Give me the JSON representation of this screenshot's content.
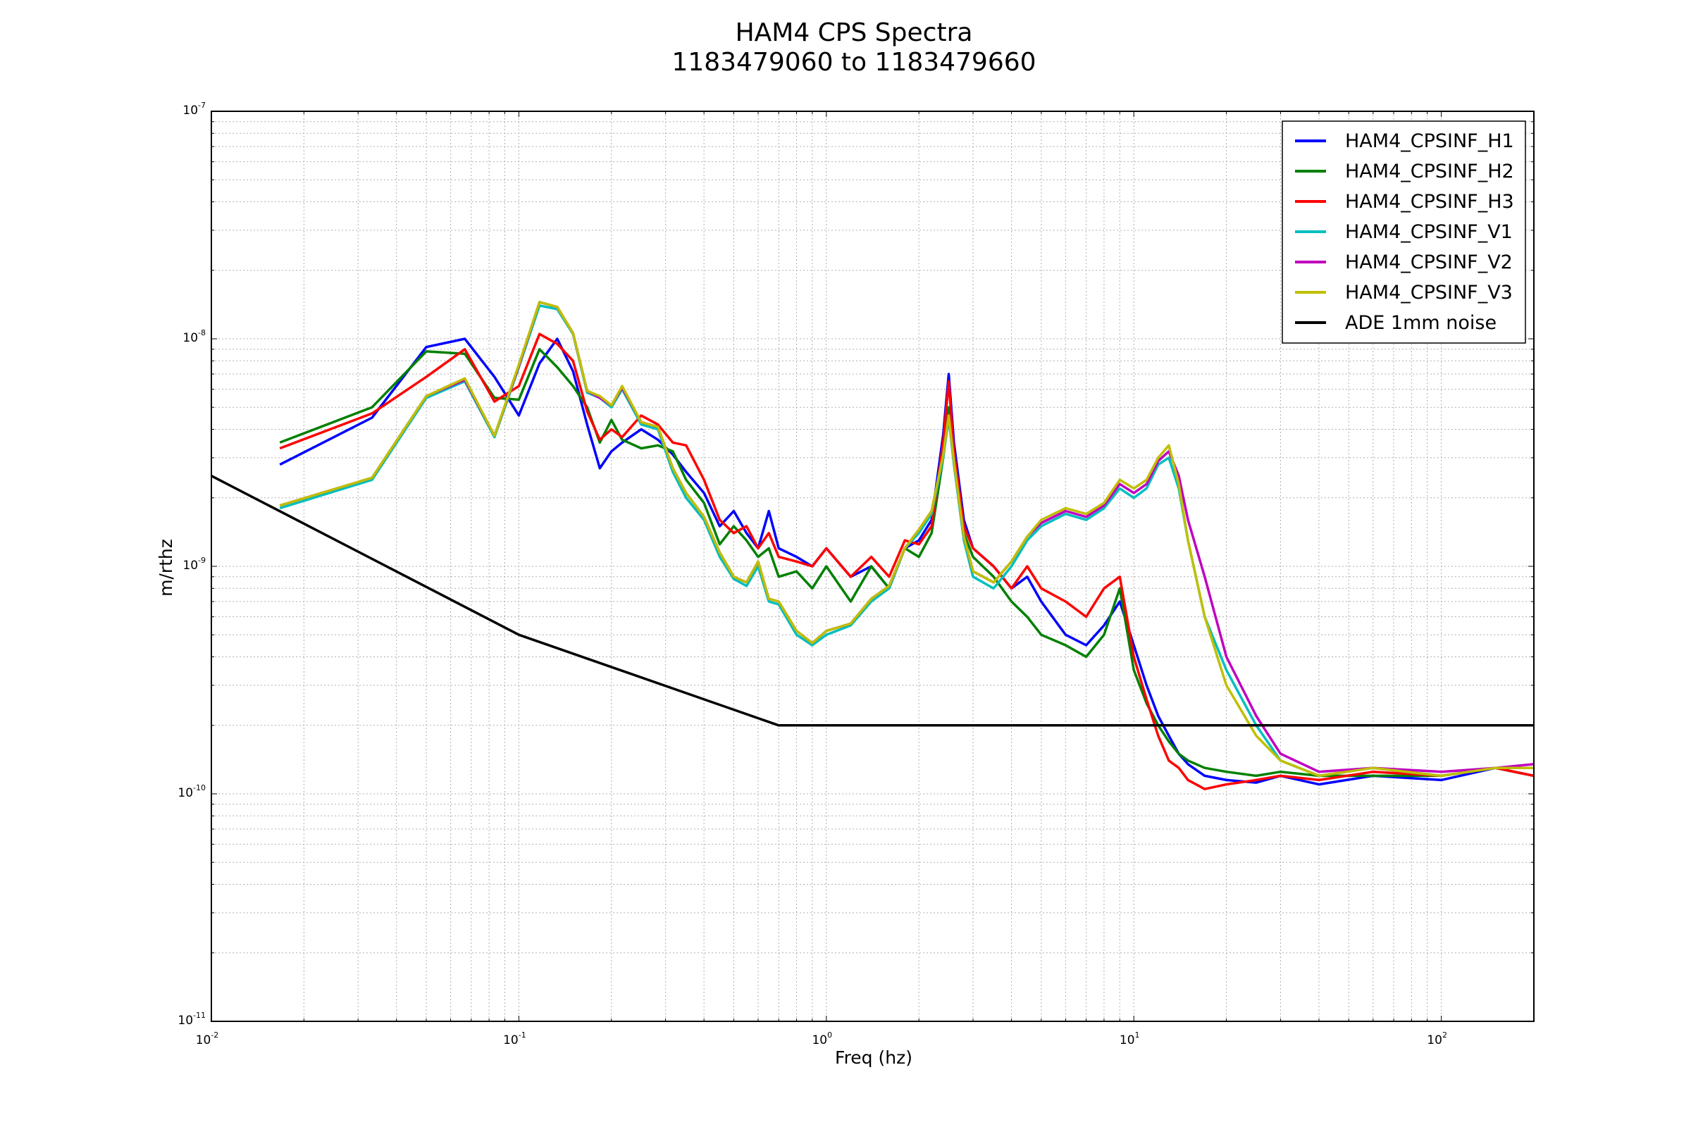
{
  "window_title": "HAM4 CPS Spectra",
  "chart_data": {
    "type": "line",
    "title": "HAM4 CPS Spectra",
    "subtitle": "1183479060 to 1183479660",
    "xlabel": "Freq (hz)",
    "ylabel": "m/rthz",
    "x_scale": "log",
    "y_scale": "log",
    "xlim": [
      0.01,
      200
    ],
    "ylim": [
      1e-11,
      1e-07
    ],
    "grid": true,
    "legend_position": "top-right",
    "x_ticks": [
      {
        "base": "10",
        "exp": "-2"
      },
      {
        "base": "10",
        "exp": "-1"
      },
      {
        "base": "10",
        "exp": "0"
      },
      {
        "base": "10",
        "exp": "1"
      },
      {
        "base": "10",
        "exp": "2"
      }
    ],
    "y_ticks": [
      {
        "base": "10",
        "exp": "-11"
      },
      {
        "base": "10",
        "exp": "-10"
      },
      {
        "base": "10",
        "exp": "-9"
      },
      {
        "base": "10",
        "exp": "-8"
      },
      {
        "base": "10",
        "exp": "-7"
      }
    ],
    "series": [
      {
        "name": "HAM4_CPSINF_H1",
        "color": "#0000ff",
        "x": [
          0.0167,
          0.0333,
          0.05,
          0.0667,
          0.0833,
          0.1,
          0.1167,
          0.1333,
          0.15,
          0.1667,
          0.1833,
          0.2,
          0.2167,
          0.25,
          0.2833,
          0.3167,
          0.35,
          0.4,
          0.45,
          0.5,
          0.55,
          0.6,
          0.65,
          0.7,
          0.8,
          0.9,
          1.0,
          1.2,
          1.4,
          1.6,
          1.8,
          2.0,
          2.2,
          2.4,
          2.5,
          2.6,
          2.8,
          3.0,
          3.5,
          4.0,
          4.5,
          5.0,
          6.0,
          7.0,
          8.0,
          9.0,
          10.0,
          11.0,
          12.0,
          13.0,
          14.0,
          15.0,
          17.0,
          20.0,
          25.0,
          30.0,
          40.0,
          60.0,
          100.0,
          150.0,
          200.0
        ],
        "y": [
          2.8e-09,
          4.5e-09,
          9.2e-09,
          1e-08,
          6.8e-09,
          4.6e-09,
          7.8e-09,
          1e-08,
          7.2e-09,
          4.2e-09,
          2.7e-09,
          3.2e-09,
          3.5e-09,
          4e-09,
          3.6e-09,
          3.1e-09,
          2.6e-09,
          2.1e-09,
          1.5e-09,
          1.75e-09,
          1.4e-09,
          1.2e-09,
          1.75e-09,
          1.2e-09,
          1.1e-09,
          1e-09,
          1.2e-09,
          9e-10,
          1e-09,
          8e-10,
          1.2e-09,
          1.3e-09,
          1.6e-09,
          3.8e-09,
          7e-09,
          3.5e-09,
          1.6e-09,
          1.2e-09,
          1e-09,
          8e-10,
          9e-10,
          7e-10,
          5e-10,
          4.5e-10,
          5.5e-10,
          7e-10,
          4.5e-10,
          3e-10,
          2.2e-10,
          1.8e-10,
          1.5e-10,
          1.35e-10,
          1.2e-10,
          1.15e-10,
          1.12e-10,
          1.2e-10,
          1.1e-10,
          1.2e-10,
          1.15e-10,
          1.3e-10,
          1.2e-10
        ]
      },
      {
        "name": "HAM4_CPSINF_H2",
        "color": "#008000",
        "x": [
          0.0167,
          0.0333,
          0.05,
          0.0667,
          0.0833,
          0.1,
          0.1167,
          0.1333,
          0.15,
          0.1667,
          0.1833,
          0.2,
          0.2167,
          0.25,
          0.2833,
          0.3167,
          0.35,
          0.4,
          0.45,
          0.5,
          0.55,
          0.6,
          0.65,
          0.7,
          0.8,
          0.9,
          1.0,
          1.2,
          1.4,
          1.6,
          1.8,
          2.0,
          2.2,
          2.4,
          2.5,
          2.6,
          2.8,
          3.0,
          3.5,
          4.0,
          4.5,
          5.0,
          6.0,
          7.0,
          8.0,
          9.0,
          10.0,
          11.0,
          12.0,
          13.0,
          14.0,
          15.0,
          17.0,
          20.0,
          25.0,
          30.0,
          40.0,
          60.0,
          100.0,
          150.0,
          200.0
        ],
        "y": [
          3.5e-09,
          5e-09,
          8.8e-09,
          8.6e-09,
          5.5e-09,
          5.4e-09,
          9e-09,
          7.5e-09,
          6.2e-09,
          5e-09,
          3.5e-09,
          4.4e-09,
          3.6e-09,
          3.3e-09,
          3.4e-09,
          3.2e-09,
          2.4e-09,
          1.9e-09,
          1.25e-09,
          1.5e-09,
          1.3e-09,
          1.1e-09,
          1.2e-09,
          9e-10,
          9.5e-10,
          8e-10,
          1e-09,
          7e-10,
          1e-09,
          8e-10,
          1.2e-09,
          1.1e-09,
          1.4e-09,
          3e-09,
          5e-09,
          3e-09,
          1.4e-09,
          1.1e-09,
          9e-10,
          7e-10,
          6e-10,
          5e-10,
          4.5e-10,
          4e-10,
          5e-10,
          8e-10,
          3.5e-10,
          2.5e-10,
          2e-10,
          1.7e-10,
          1.5e-10,
          1.4e-10,
          1.3e-10,
          1.25e-10,
          1.2e-10,
          1.25e-10,
          1.2e-10,
          1.2e-10,
          1.2e-10,
          1.3e-10,
          1.2e-10
        ]
      },
      {
        "name": "HAM4_CPSINF_H3",
        "color": "#ff0000",
        "x": [
          0.0167,
          0.0333,
          0.05,
          0.0667,
          0.0833,
          0.1,
          0.1167,
          0.1333,
          0.15,
          0.1667,
          0.1833,
          0.2,
          0.2167,
          0.25,
          0.2833,
          0.3167,
          0.35,
          0.4,
          0.45,
          0.5,
          0.55,
          0.6,
          0.65,
          0.7,
          0.8,
          0.9,
          1.0,
          1.2,
          1.4,
          1.6,
          1.8,
          2.0,
          2.2,
          2.4,
          2.5,
          2.6,
          2.8,
          3.0,
          3.5,
          4.0,
          4.5,
          5.0,
          6.0,
          7.0,
          8.0,
          9.0,
          10.0,
          11.0,
          12.0,
          13.0,
          14.0,
          15.0,
          17.0,
          20.0,
          25.0,
          30.0,
          40.0,
          60.0,
          100.0,
          150.0,
          200.0
        ],
        "y": [
          3.3e-09,
          4.7e-09,
          6.8e-09,
          9e-09,
          5.3e-09,
          6.2e-09,
          1.05e-08,
          9.5e-09,
          8e-09,
          4.8e-09,
          3.6e-09,
          4e-09,
          3.7e-09,
          4.6e-09,
          4.2e-09,
          3.5e-09,
          3.4e-09,
          2.4e-09,
          1.6e-09,
          1.4e-09,
          1.5e-09,
          1.2e-09,
          1.4e-09,
          1.1e-09,
          1.05e-09,
          1e-09,
          1.2e-09,
          9e-10,
          1.1e-09,
          9e-10,
          1.3e-09,
          1.25e-09,
          1.5e-09,
          3.5e-09,
          6.5e-09,
          3.2e-09,
          1.5e-09,
          1.2e-09,
          1e-09,
          8e-10,
          1e-09,
          8e-10,
          7e-10,
          6e-10,
          8e-10,
          9e-10,
          4e-10,
          2.6e-10,
          1.8e-10,
          1.4e-10,
          1.3e-10,
          1.15e-10,
          1.05e-10,
          1.1e-10,
          1.15e-10,
          1.2e-10,
          1.15e-10,
          1.25e-10,
          1.2e-10,
          1.3e-10,
          1.2e-10
        ]
      },
      {
        "name": "HAM4_CPSINF_V1",
        "color": "#00bfbf",
        "x": [
          0.0167,
          0.0333,
          0.05,
          0.0667,
          0.0833,
          0.1,
          0.1167,
          0.1333,
          0.15,
          0.1667,
          0.1833,
          0.2,
          0.2167,
          0.25,
          0.2833,
          0.3167,
          0.35,
          0.4,
          0.45,
          0.5,
          0.55,
          0.6,
          0.65,
          0.7,
          0.8,
          0.9,
          1.0,
          1.2,
          1.4,
          1.6,
          1.8,
          2.0,
          2.2,
          2.4,
          2.5,
          2.6,
          2.8,
          3.0,
          3.5,
          4.0,
          4.5,
          5.0,
          6.0,
          7.0,
          8.0,
          9.0,
          10.0,
          11.0,
          12.0,
          13.0,
          14.0,
          15.0,
          17.0,
          20.0,
          25.0,
          30.0,
          40.0,
          60.0,
          100.0,
          150.0,
          200.0
        ],
        "y": [
          1.8e-09,
          2.4e-09,
          5.5e-09,
          6.5e-09,
          3.7e-09,
          7.5e-09,
          1.4e-08,
          1.35e-08,
          1.05e-08,
          5.8e-09,
          5.5e-09,
          5e-09,
          6e-09,
          4.2e-09,
          4e-09,
          2.6e-09,
          2e-09,
          1.6e-09,
          1.1e-09,
          8.8e-10,
          8.2e-10,
          1e-09,
          7e-10,
          6.8e-10,
          5e-10,
          4.5e-10,
          5e-10,
          5.5e-10,
          7e-10,
          8e-10,
          1.2e-09,
          1.4e-09,
          1.7e-09,
          3e-09,
          4.5e-09,
          2.8e-09,
          1.3e-09,
          9e-10,
          8e-10,
          1e-09,
          1.3e-09,
          1.5e-09,
          1.7e-09,
          1.6e-09,
          1.8e-09,
          2.2e-09,
          2e-09,
          2.2e-09,
          2.8e-09,
          3e-09,
          2.2e-09,
          1.3e-09,
          6e-10,
          3.5e-10,
          2e-10,
          1.4e-10,
          1.2e-10,
          1.3e-10,
          1.2e-10,
          1.3e-10,
          1.3e-10
        ]
      },
      {
        "name": "HAM4_CPSINF_V2",
        "color": "#bf00bf",
        "x": [
          0.0167,
          0.0333,
          0.05,
          0.0667,
          0.0833,
          0.1,
          0.1167,
          0.1333,
          0.15,
          0.1667,
          0.1833,
          0.2,
          0.2167,
          0.25,
          0.2833,
          0.3167,
          0.35,
          0.4,
          0.45,
          0.5,
          0.55,
          0.6,
          0.65,
          0.7,
          0.8,
          0.9,
          1.0,
          1.2,
          1.4,
          1.6,
          1.8,
          2.0,
          2.2,
          2.4,
          2.5,
          2.6,
          2.8,
          3.0,
          3.5,
          4.0,
          4.5,
          5.0,
          6.0,
          7.0,
          8.0,
          9.0,
          10.0,
          11.0,
          12.0,
          13.0,
          14.0,
          15.0,
          17.0,
          20.0,
          25.0,
          30.0,
          40.0,
          60.0,
          100.0,
          150.0,
          200.0
        ],
        "y": [
          1.85e-09,
          2.45e-09,
          5.6e-09,
          6.6e-09,
          3.75e-09,
          7.6e-09,
          1.45e-08,
          1.38e-08,
          1.06e-08,
          5.9e-09,
          5.5e-09,
          5.1e-09,
          6.1e-09,
          4.3e-09,
          4.1e-09,
          2.7e-09,
          2.1e-09,
          1.65e-09,
          1.15e-09,
          9e-10,
          8.5e-10,
          1.05e-09,
          7.2e-10,
          7e-10,
          5.2e-10,
          4.6e-10,
          5.2e-10,
          5.6e-10,
          7.2e-10,
          8.2e-10,
          1.2e-09,
          1.45e-09,
          1.75e-09,
          3.1e-09,
          4.6e-09,
          2.9e-09,
          1.35e-09,
          9.5e-10,
          8.5e-10,
          1.05e-09,
          1.35e-09,
          1.55e-09,
          1.75e-09,
          1.65e-09,
          1.85e-09,
          2.3e-09,
          2.1e-09,
          2.3e-09,
          2.9e-09,
          3.2e-09,
          2.5e-09,
          1.6e-09,
          9e-10,
          4e-10,
          2.2e-10,
          1.5e-10,
          1.25e-10,
          1.3e-10,
          1.25e-10,
          1.3e-10,
          1.35e-10
        ]
      },
      {
        "name": "HAM4_CPSINF_V3",
        "color": "#bfbf00",
        "x": [
          0.0167,
          0.0333,
          0.05,
          0.0667,
          0.0833,
          0.1,
          0.1167,
          0.1333,
          0.15,
          0.1667,
          0.1833,
          0.2,
          0.2167,
          0.25,
          0.2833,
          0.3167,
          0.35,
          0.4,
          0.45,
          0.5,
          0.55,
          0.6,
          0.65,
          0.7,
          0.8,
          0.9,
          1.0,
          1.2,
          1.4,
          1.6,
          1.8,
          2.0,
          2.2,
          2.4,
          2.5,
          2.6,
          2.8,
          3.0,
          3.5,
          4.0,
          4.5,
          5.0,
          6.0,
          7.0,
          8.0,
          9.0,
          10.0,
          11.0,
          12.0,
          13.0,
          14.0,
          15.0,
          17.0,
          20.0,
          25.0,
          30.0,
          40.0,
          60.0,
          100.0,
          150.0,
          200.0
        ],
        "y": [
          1.85e-09,
          2.45e-09,
          5.6e-09,
          6.7e-09,
          3.75e-09,
          7.7e-09,
          1.45e-08,
          1.38e-08,
          1.06e-08,
          5.9e-09,
          5.6e-09,
          5.1e-09,
          6.2e-09,
          4.3e-09,
          4.1e-09,
          2.7e-09,
          2.1e-09,
          1.65e-09,
          1.15e-09,
          9e-10,
          8.5e-10,
          1.05e-09,
          7.2e-10,
          7e-10,
          5.2e-10,
          4.6e-10,
          5.2e-10,
          5.6e-10,
          7.2e-10,
          8.2e-10,
          1.2e-09,
          1.45e-09,
          1.75e-09,
          3.1e-09,
          4.6e-09,
          2.9e-09,
          1.35e-09,
          9.5e-10,
          8.5e-10,
          1.05e-09,
          1.35e-09,
          1.6e-09,
          1.8e-09,
          1.7e-09,
          1.9e-09,
          2.4e-09,
          2.2e-09,
          2.4e-09,
          3e-09,
          3.4e-09,
          2.3e-09,
          1.3e-09,
          6e-10,
          3e-10,
          1.8e-10,
          1.4e-10,
          1.2e-10,
          1.3e-10,
          1.2e-10,
          1.3e-10,
          1.3e-10
        ]
      },
      {
        "name": "ADE 1mm noise",
        "color": "#000000",
        "x": [
          0.01,
          0.1,
          0.7,
          200.0
        ],
        "y": [
          2.5e-09,
          5e-10,
          2e-10,
          2e-10
        ]
      }
    ]
  }
}
